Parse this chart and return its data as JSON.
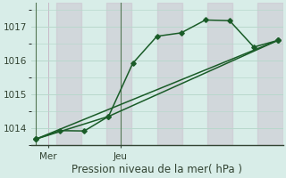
{
  "xlabel": "Pression niveau de la mer( hPa )",
  "bg_color": "#d8ede8",
  "grid_color_h": "#b8d8cc",
  "grid_color_v": "#c8b8c8",
  "line_color": "#1a5c28",
  "ylim": [
    1013.5,
    1017.7
  ],
  "yticks": [
    1014,
    1015,
    1016,
    1017
  ],
  "xlim": [
    -0.2,
    10.2
  ],
  "line1_x": [
    0,
    1,
    2,
    3,
    4,
    5,
    6,
    7,
    8,
    9,
    10
  ],
  "line1_y": [
    1013.68,
    1013.93,
    1013.92,
    1014.35,
    1015.92,
    1016.72,
    1016.82,
    1017.2,
    1017.18,
    1016.4,
    1016.6
  ],
  "line2_x": [
    0,
    3,
    10
  ],
  "line2_y": [
    1013.68,
    1014.35,
    1016.6
  ],
  "line3_x": [
    0,
    3,
    10
  ],
  "line3_y": [
    1013.68,
    1014.35,
    1016.6
  ],
  "xtick_positions": [
    0.5,
    3.5
  ],
  "xtick_labels": [
    "Mer",
    "Jeu"
  ],
  "vline_positions": [
    0,
    3.5
  ],
  "marker_size": 2.8,
  "linewidth": 1.1,
  "fontsize_xlabel": 8.5,
  "fontsize_yticks": 7.5,
  "fontsize_xticks": 7.5
}
